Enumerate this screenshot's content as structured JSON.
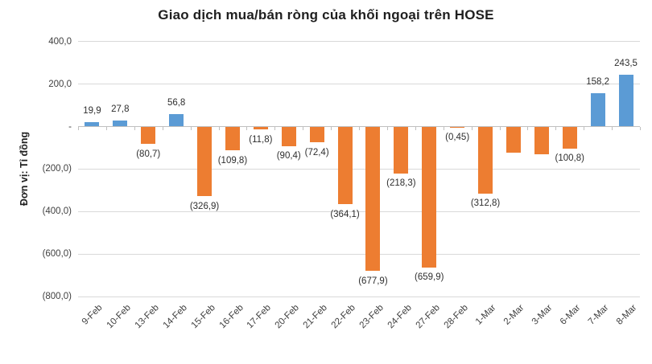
{
  "colors": {
    "positive": "#5B9BD5",
    "negative": "#ED7D31",
    "gridline": "#D9D9D9",
    "axis_line": "#BFBFBF"
  },
  "chart_data": {
    "type": "bar",
    "title": "Giao dịch mua/bán ròng của khối ngoại trên HOSE",
    "xlabel": "",
    "ylabel": "Đơn vị: Tỉ đồng",
    "ylim": [
      -800,
      400
    ],
    "grid": true,
    "legend": false,
    "categories": [
      "9-Feb",
      "10-Feb",
      "13-Feb",
      "14-Feb",
      "15-Feb",
      "16-Feb",
      "17-Feb",
      "20-Feb",
      "21-Feb",
      "22-Feb",
      "23-Feb",
      "24-Feb",
      "27-Feb",
      "28-Feb",
      "1-Mar",
      "2-Mar",
      "3-Mar",
      "6-Mar",
      "7-Mar",
      "8-Mar"
    ],
    "values": [
      19.9,
      27.8,
      -80.7,
      56.8,
      -326.9,
      -109.8,
      -11.8,
      -90.4,
      -72.4,
      -364.1,
      -677.9,
      -218.3,
      -659.9,
      -0.45,
      -312.8,
      -120,
      -128,
      -100.8,
      158.2,
      243.5
    ],
    "data_labels": [
      "19,9",
      "27,8",
      "(80,7)",
      "56,8",
      "(326,9)",
      "(109,8)",
      "(11,8)",
      "(90,4)",
      "(72,4)",
      "(364,1)",
      "(677,9)",
      "(218,3)",
      "(659,9)",
      "(0,45)",
      "(312,8)",
      "",
      "",
      "(100,8)",
      "158,2",
      "243,5"
    ],
    "yticks": [
      {
        "value": 400,
        "label": "400,0"
      },
      {
        "value": 200,
        "label": "200,0"
      },
      {
        "value": 0,
        "label": "-"
      },
      {
        "value": -200,
        "label": "(200,0)"
      },
      {
        "value": -400,
        "label": "(400,0)"
      },
      {
        "value": -600,
        "label": "(600,0)"
      },
      {
        "value": -800,
        "label": "(800,0)"
      }
    ]
  }
}
